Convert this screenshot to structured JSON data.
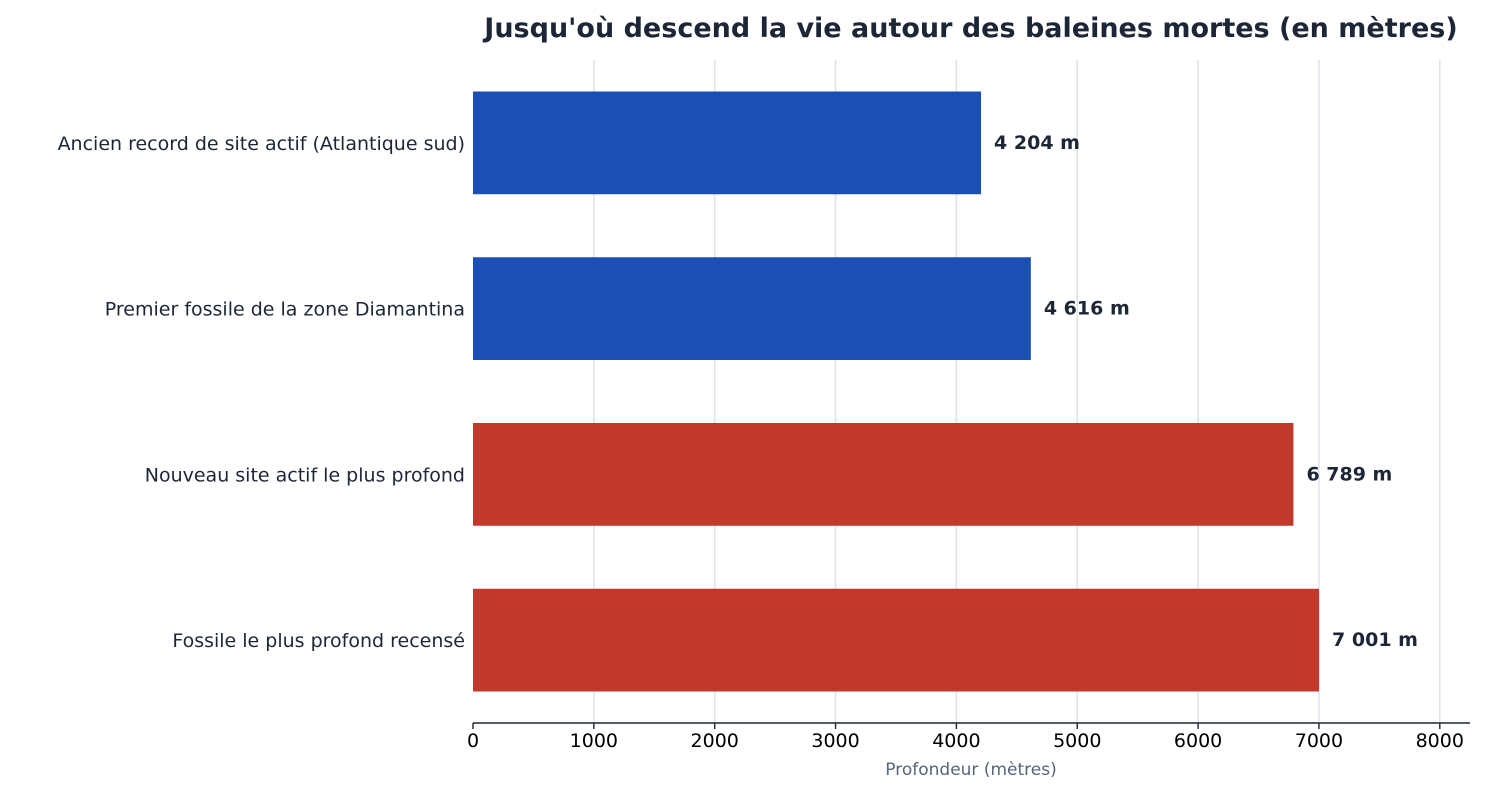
{
  "chart_data": {
    "type": "bar",
    "orientation": "horizontal",
    "title": "Jusqu'où descend la vie autour des baleines mortes (en mètres)",
    "xlabel": "Profondeur (mètres)",
    "ylabel": "",
    "xlim": [
      0,
      8250
    ],
    "xticks": [
      0,
      1000,
      2000,
      3000,
      4000,
      5000,
      6000,
      7000,
      8000
    ],
    "xtick_labels": [
      "0",
      "1000",
      "2000",
      "3000",
      "4000",
      "5000",
      "6000",
      "7000",
      "8000"
    ],
    "grid": "vertical",
    "categories": [
      "Ancien record de site actif (Atlantique sud)",
      "Premier fossile de la zone Diamantina",
      "Nouveau site actif le plus profond",
      "Fossile le plus profond recensé"
    ],
    "values": [
      4204,
      4616,
      6789,
      7001
    ],
    "data_labels": [
      "4 204 m",
      "4 616 m",
      "6 789 m",
      "7 001 m"
    ],
    "bar_colors": [
      "#1b4fb3",
      "#1b4fb3",
      "#c0392b",
      "#c0392b"
    ],
    "colors": {
      "title": "#1c2637",
      "text": "#1c2637",
      "axis_title": "#56657c",
      "grid": "#dde5ea"
    }
  }
}
